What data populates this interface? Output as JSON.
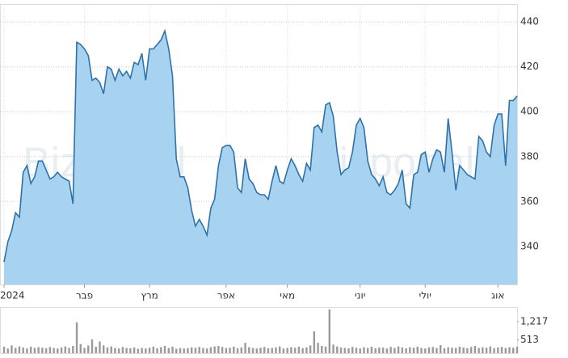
{
  "chart_data": [
    {
      "type": "area",
      "watermark": "Bizportal",
      "color": "#2f72a8",
      "fill": "#a8d3f0",
      "values": [
        333,
        342,
        347,
        355,
        353,
        373,
        376,
        368,
        371,
        378,
        378,
        374,
        370,
        371,
        373,
        371,
        370,
        369,
        359,
        431,
        430,
        428,
        425,
        414,
        415,
        413,
        408,
        420,
        419,
        414,
        419,
        416,
        418,
        415,
        422,
        421,
        426,
        414,
        428,
        428,
        430,
        432,
        436,
        428,
        416,
        379,
        371,
        371,
        366,
        356,
        349,
        352,
        349,
        345,
        357,
        361,
        376,
        384,
        385,
        385,
        382,
        366,
        364,
        379,
        370,
        368,
        364,
        363,
        363,
        361,
        369,
        376,
        369,
        368,
        374,
        379,
        376,
        372,
        369,
        377,
        374,
        393,
        394,
        391,
        403,
        404,
        398,
        382,
        372,
        374,
        375,
        382,
        394,
        397,
        393,
        378,
        372,
        370,
        367,
        371,
        364,
        363,
        365,
        368,
        374,
        359,
        357,
        372,
        373,
        381,
        382,
        373,
        379,
        383,
        382,
        373,
        397,
        382,
        365,
        376,
        374,
        372,
        371,
        370,
        389,
        387,
        382,
        380,
        394,
        399,
        399,
        376,
        405,
        405,
        407
      ],
      "xlim": [
        0,
        134
      ],
      "xticks": [
        {
          "value": 0,
          "label": "2024"
        },
        {
          "value": 21,
          "label": "פבר"
        },
        {
          "value": 38,
          "label": "מרץ"
        },
        {
          "value": 58,
          "label": "אפר"
        },
        {
          "value": 74,
          "label": "מאי"
        },
        {
          "value": 93,
          "label": "יוני"
        },
        {
          "value": 110,
          "label": "יולי"
        },
        {
          "value": 129,
          "label": "אוג"
        }
      ],
      "ylim": [
        323,
        448
      ],
      "yticks": [
        340,
        360,
        380,
        400,
        420,
        440
      ],
      "grid": true
    },
    {
      "type": "bar",
      "color": "#9a9a9a",
      "values": [
        250,
        180,
        300,
        200,
        260,
        220,
        180,
        250,
        200,
        230,
        210,
        190,
        240,
        200,
        180,
        220,
        260,
        200,
        280,
        1190,
        350,
        200,
        300,
        530,
        250,
        450,
        300,
        220,
        260,
        200,
        180,
        240,
        200,
        190,
        220,
        170,
        200,
        180,
        210,
        250,
        190,
        230,
        280,
        200,
        250,
        170,
        200,
        180,
        190,
        220,
        210,
        240,
        200,
        180,
        230,
        260,
        280,
        240,
        200,
        210,
        250,
        190,
        220,
        400,
        230,
        200,
        180,
        210,
        240,
        190,
        200,
        220,
        260,
        180,
        200,
        230,
        210,
        250,
        190,
        220,
        300,
        840,
        400,
        280,
        250,
        1690,
        330,
        260,
        220,
        200,
        190,
        240,
        210,
        180,
        230,
        200,
        250,
        190,
        220,
        210,
        180,
        240,
        200,
        260,
        220,
        190,
        230,
        210,
        250,
        200,
        180,
        220,
        240,
        200,
        310,
        190,
        230,
        210,
        200,
        250,
        220,
        190,
        240,
        280,
        200,
        230,
        210,
        260,
        190,
        220,
        240,
        200,
        230,
        210,
        250
      ],
      "xlim": [
        0,
        134
      ],
      "ylim": [
        0,
        1780
      ],
      "yticks": [
        {
          "value": 1217,
          "label": "1,217"
        },
        513
      ]
    }
  ]
}
